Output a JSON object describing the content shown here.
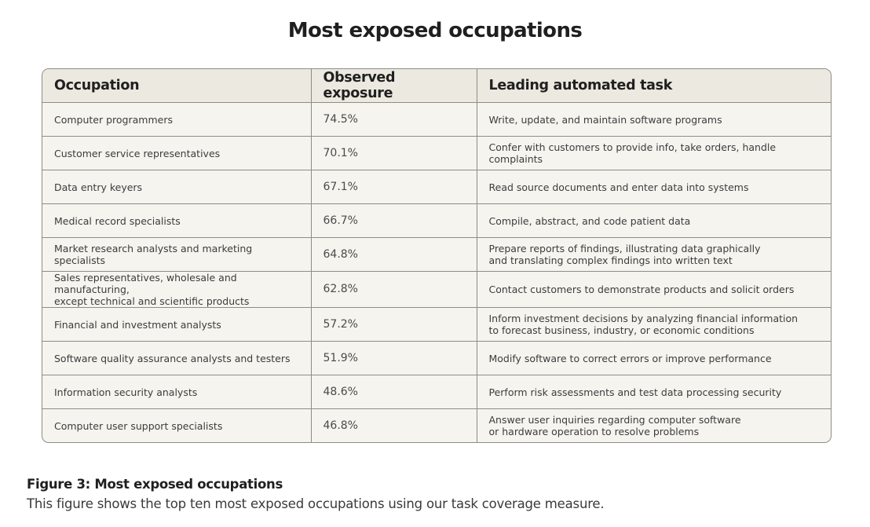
{
  "title": "Most exposed occupations",
  "table": {
    "header": [
      "Occupation",
      "Observed exposure",
      "Leading automated task"
    ],
    "rows": [
      [
        "Computer programmers",
        "74.5%",
        "Write, update, and maintain software programs"
      ],
      [
        "Customer service representatives",
        "70.1%",
        "Confer with customers to provide info, take orders, handle complaints"
      ],
      [
        "Data entry keyers",
        "67.1%",
        "Read source documents and enter data into systems"
      ],
      [
        "Medical record specialists",
        "66.7%",
        "Compile, abstract, and code patient data"
      ],
      [
        "Market research analysts and marketing specialists",
        "64.8%",
        "Prepare reports of findings, illustrating data graphically\nand translating complex findings into written text"
      ],
      [
        "Sales representatives, wholesale and manufacturing,\nexcept technical and scientific products",
        "62.8%",
        "Contact customers to demonstrate products and solicit orders"
      ],
      [
        "Financial and investment analysts",
        "57.2%",
        "Inform investment decisions by analyzing financial information\nto forecast business, industry, or economic conditions"
      ],
      [
        "Software quality assurance analysts and testers",
        "51.9%",
        "Modify software to correct errors or improve performance"
      ],
      [
        "Information security analysts",
        "48.6%",
        "Perform risk assessments and test data processing security"
      ],
      [
        "Computer user support specialists",
        "46.8%",
        "Answer user inquiries regarding computer software\nor hardware operation to resolve problems"
      ]
    ]
  },
  "caption": {
    "label": "Figure 3: Most exposed occupations",
    "text": "This figure shows the top ten most exposed occupations using our task coverage measure."
  }
}
